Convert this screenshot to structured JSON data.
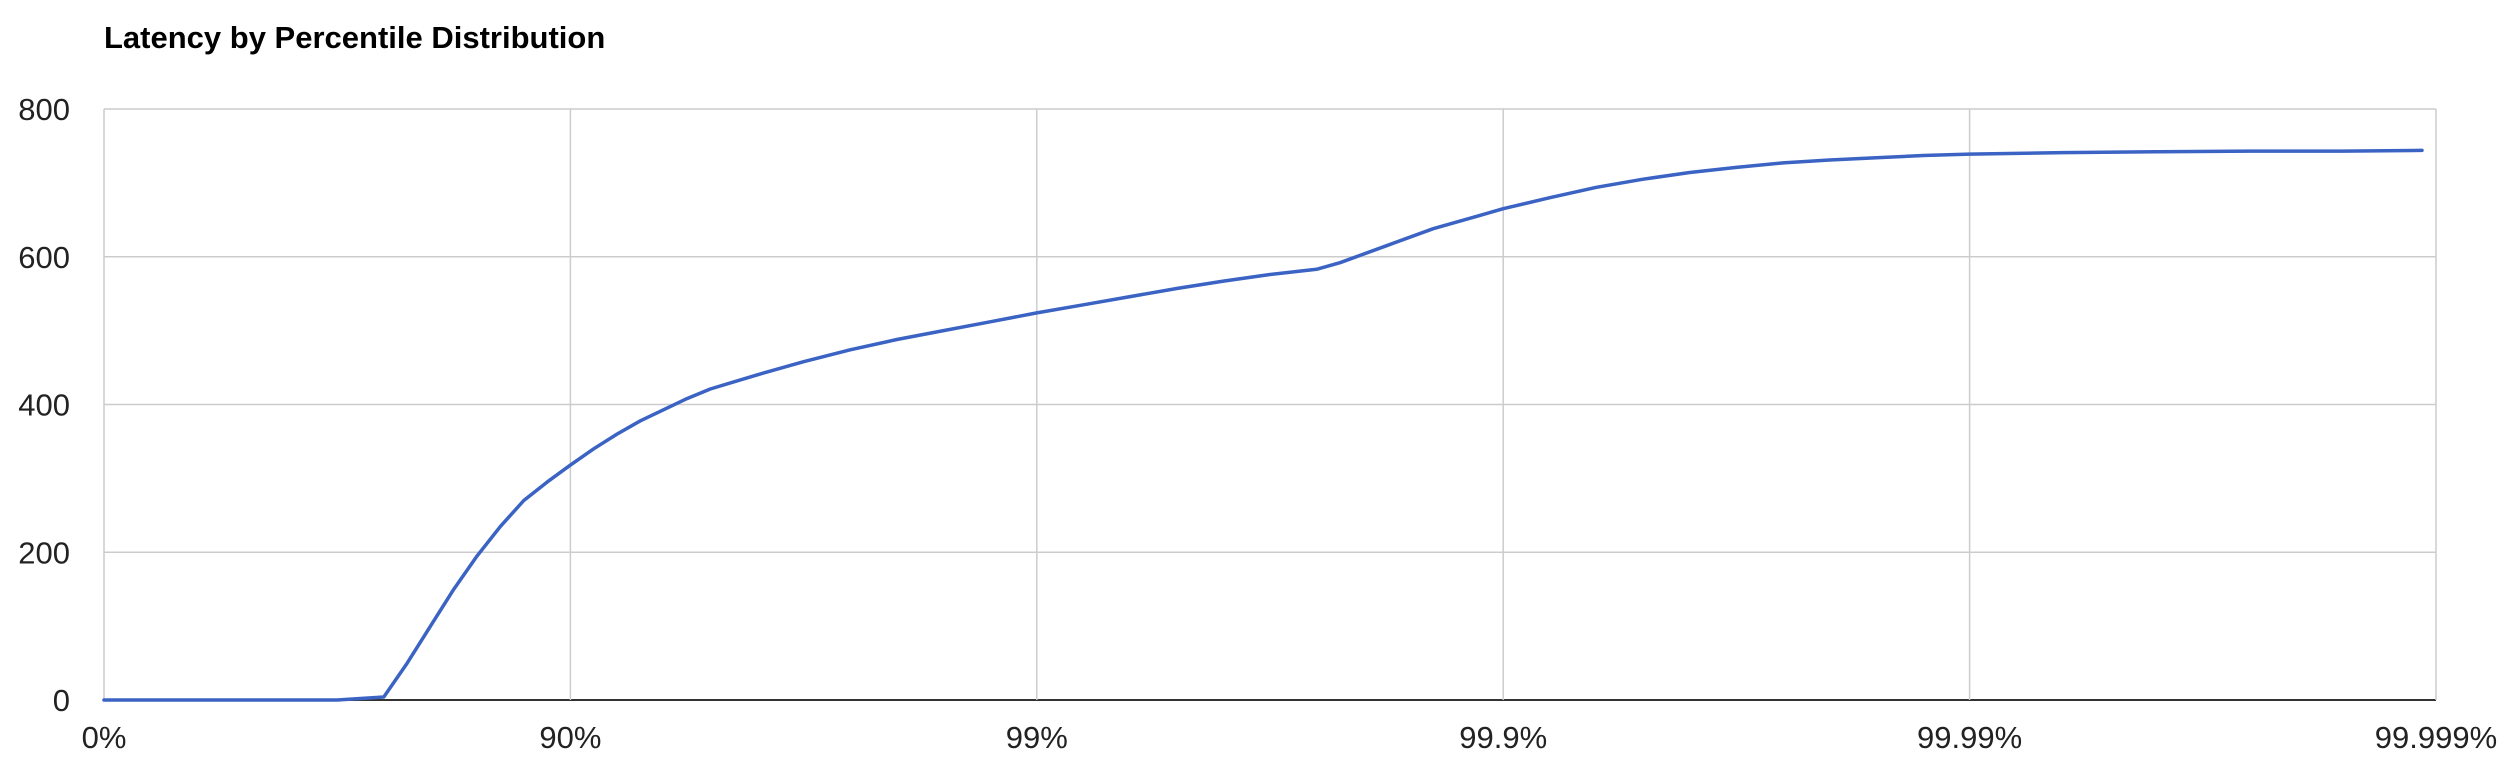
{
  "chart_data": {
    "type": "line",
    "title": "Latency by Percentile Distribution",
    "xlabel": "",
    "ylabel": "",
    "x_scale": "percentile-log (x = -log10(1 - p))",
    "xlim": [
      0,
      5
    ],
    "ylim": [
      0,
      800
    ],
    "yticks": [
      0,
      200,
      400,
      600,
      800
    ],
    "ytick_labels": [
      "0",
      "200",
      "400",
      "600",
      "800"
    ],
    "xticks": [
      0,
      1,
      2,
      3,
      4,
      5
    ],
    "xtick_labels": [
      "0%",
      "90%",
      "99%",
      "99.9%",
      "99.99%",
      "99.999%"
    ],
    "grid": true,
    "legend": "none",
    "colors": {
      "line": "#3b63c4",
      "grid": "#cccccc",
      "axis": "#333333"
    },
    "series": [
      {
        "name": "Latency",
        "x": [
          0,
          0.3,
          0.5,
          0.55,
          0.6,
          0.65,
          0.7,
          0.75,
          0.8,
          0.85,
          0.9,
          0.95,
          1.0,
          1.05,
          1.1,
          1.15,
          1.2,
          1.25,
          1.3,
          1.4,
          1.5,
          1.6,
          1.7,
          1.8,
          1.9,
          2.0,
          2.1,
          2.2,
          2.3,
          2.4,
          2.5,
          2.6,
          2.65,
          2.75,
          2.85,
          2.95,
          3.0,
          3.1,
          3.2,
          3.3,
          3.4,
          3.5,
          3.6,
          3.7,
          3.8,
          3.9,
          4.0,
          4.2,
          4.4,
          4.6,
          4.8,
          4.97
        ],
        "y": [
          0,
          0,
          0,
          2,
          4,
          50,
          100,
          150,
          195,
          235,
          270,
          295,
          318,
          340,
          360,
          378,
          393,
          408,
          421,
          440,
          458,
          474,
          488,
          500,
          512,
          524,
          535,
          546,
          557,
          567,
          576,
          583,
          592,
          615,
          638,
          656,
          665,
          680,
          694,
          705,
          714,
          721,
          727,
          731,
          734,
          737,
          739,
          741,
          742,
          743,
          743,
          744
        ]
      }
    ]
  }
}
